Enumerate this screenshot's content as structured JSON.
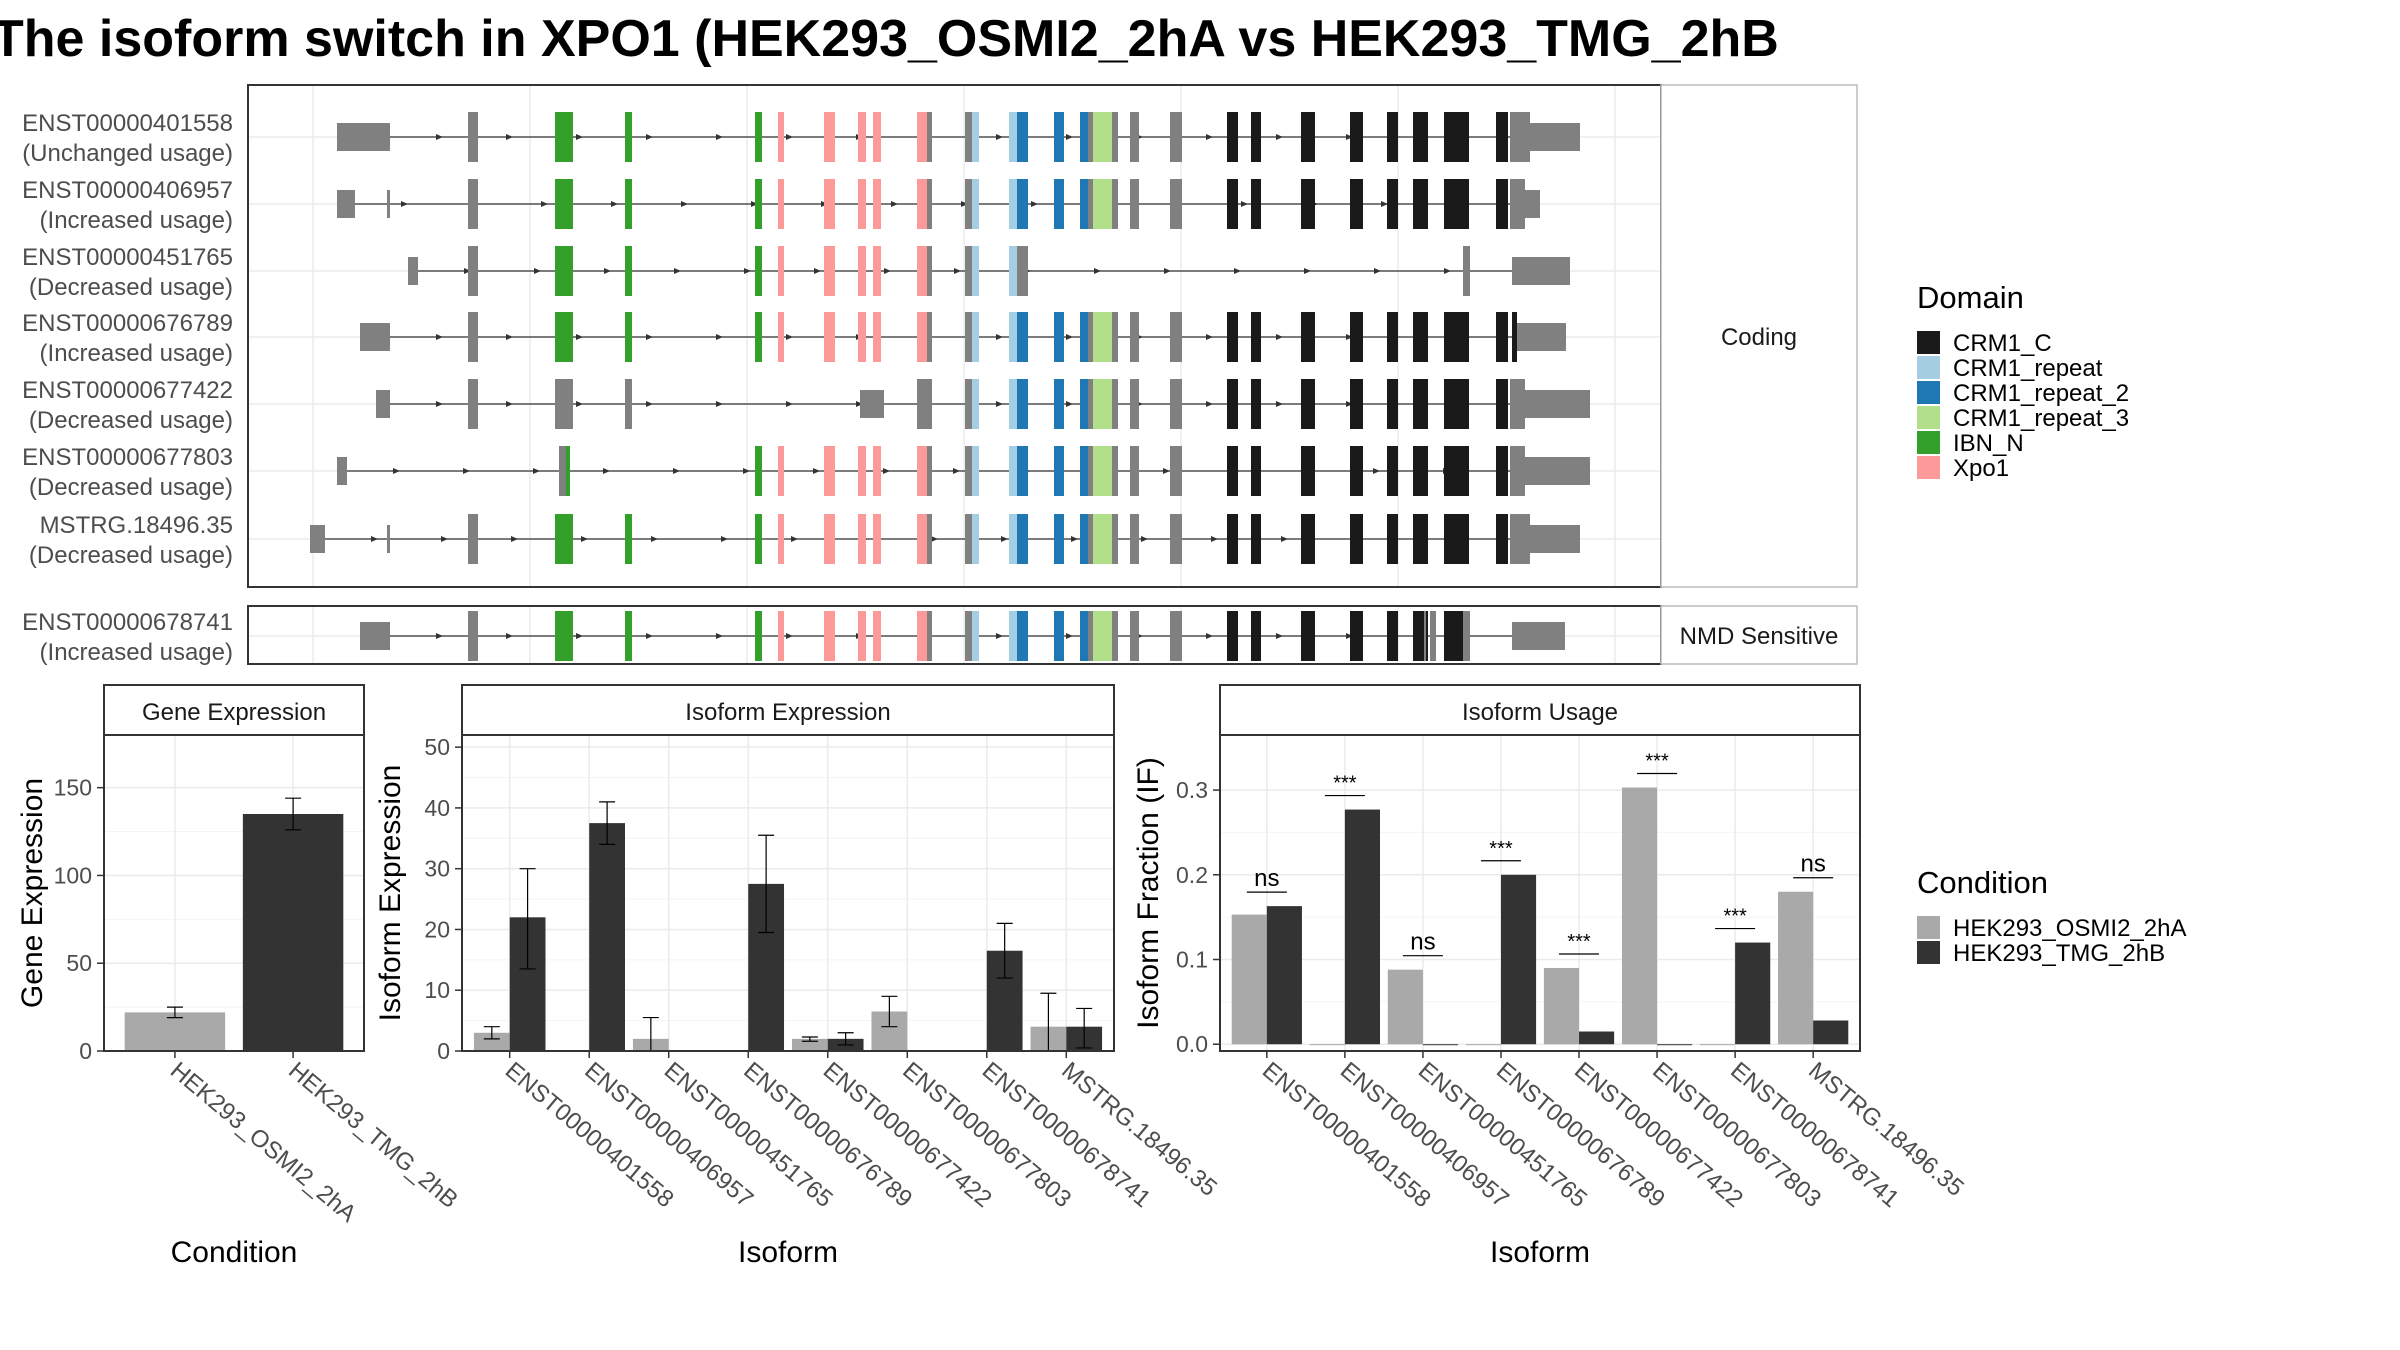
{
  "title": "The isoform switch in XPO1 (HEK293_OSMI2_2hA vs HEK293_TMG_2hB",
  "colors": {
    "condition_a": "#A9A9A9",
    "condition_b": "#333333",
    "exon": "#808080",
    "panel_border": "#333333",
    "grid": "#EBEBEB",
    "strip_bg": "#FFFFFF"
  },
  "structure": {
    "facets": [
      "Coding",
      "NMD Sensitive"
    ],
    "transcripts": [
      {
        "id": "ENST00000401558",
        "usage": "(Unchanged usage)"
      },
      {
        "id": "ENST00000406957",
        "usage": "(Increased usage)"
      },
      {
        "id": "ENST00000451765",
        "usage": "(Decreased usage)"
      },
      {
        "id": "ENST00000676789",
        "usage": "(Increased usage)"
      },
      {
        "id": "ENST00000677422",
        "usage": "(Decreased usage)"
      },
      {
        "id": "ENST00000677803",
        "usage": "(Decreased usage)"
      },
      {
        "id": "MSTRG.18496.35",
        "usage": "(Decreased usage)"
      },
      {
        "id": "ENST00000678741",
        "usage": "(Increased usage)"
      }
    ]
  },
  "legend_domain": {
    "title": "Domain",
    "items": [
      {
        "label": "CRM1_C",
        "color": "#1A1A1A"
      },
      {
        "label": "CRM1_repeat",
        "color": "#A6CEE3"
      },
      {
        "label": "CRM1_repeat_2",
        "color": "#1F78B4"
      },
      {
        "label": "CRM1_repeat_3",
        "color": "#B2DF8A"
      },
      {
        "label": "IBN_N",
        "color": "#33A02C"
      },
      {
        "label": "Xpo1",
        "color": "#FB9A99"
      }
    ]
  },
  "legend_condition": {
    "title": "Condition",
    "items": [
      {
        "label": "HEK293_OSMI2_2hA",
        "color": "#A9A9A9"
      },
      {
        "label": "HEK293_TMG_2hB",
        "color": "#333333"
      }
    ]
  },
  "chart_data": [
    {
      "type": "bar",
      "title": "Gene Expression",
      "xlabel": "Condition",
      "ylabel": "Gene Expression",
      "categories": [
        "HEK293_OSMI2_2hA",
        "HEK293_TMG_2hB"
      ],
      "values": [
        22,
        135
      ],
      "error_low": [
        19,
        126
      ],
      "error_high": [
        25,
        144
      ],
      "ylim": [
        0,
        180
      ],
      "yticks": [
        0,
        50,
        100,
        150
      ]
    },
    {
      "type": "bar",
      "title": "Isoform Expression",
      "xlabel": "Isoform",
      "ylabel": "Isoform Expression",
      "categories": [
        "ENST00000401558",
        "ENST00000406957",
        "ENST00000451765",
        "ENST00000676789",
        "ENST00000677422",
        "ENST00000677803",
        "ENST00000678741",
        "MSTRG.18496.35"
      ],
      "series": [
        {
          "name": "HEK293_OSMI2_2hA",
          "values": [
            3,
            0,
            2,
            0,
            2,
            6.5,
            0,
            4
          ],
          "error_low": [
            2,
            0,
            0,
            0,
            1.6,
            4,
            0,
            0
          ],
          "error_high": [
            4,
            0,
            5.5,
            0,
            2.3,
            9,
            0,
            9.5
          ]
        },
        {
          "name": "HEK293_TMG_2hB",
          "values": [
            22,
            37.5,
            0,
            27.5,
            2,
            0,
            16.5,
            4
          ],
          "error_low": [
            13.5,
            34,
            0,
            19.5,
            1,
            0,
            12,
            0.5
          ],
          "error_high": [
            30,
            41,
            0,
            35.5,
            3,
            0,
            21,
            7
          ]
        }
      ],
      "ylim": [
        0,
        52
      ],
      "yticks": [
        0,
        10,
        20,
        30,
        40,
        50
      ]
    },
    {
      "type": "bar",
      "title": "Isoform Usage",
      "xlabel": "Isoform",
      "ylabel": "Isoform Fraction (IF)",
      "categories": [
        "ENST00000401558",
        "ENST00000406957",
        "ENST00000451765",
        "ENST00000676789",
        "ENST00000677422",
        "ENST00000677803",
        "ENST00000678741",
        "MSTRG.18496.35"
      ],
      "series": [
        {
          "name": "HEK293_OSMI2_2hA",
          "values": [
            0.153,
            0,
            0.088,
            0,
            0.09,
            0.303,
            0,
            0.18
          ]
        },
        {
          "name": "HEK293_TMG_2hB",
          "values": [
            0.163,
            0.277,
            0,
            0.2,
            0.015,
            0,
            0.12,
            0.028
          ]
        }
      ],
      "significance": [
        "ns",
        "***",
        "ns",
        "***",
        "***",
        "***",
        "***",
        "ns"
      ],
      "ylim": [
        -0.008,
        0.365
      ],
      "yticks": [
        0.0,
        0.1,
        0.2,
        0.3
      ],
      "ytick_labels": [
        "0.0",
        "0.1",
        "0.2",
        "0.3"
      ]
    }
  ]
}
